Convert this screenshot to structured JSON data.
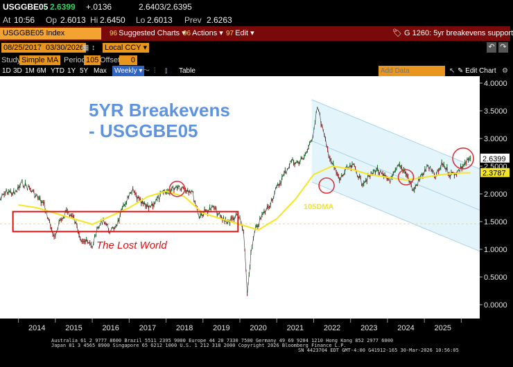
{
  "quote": {
    "ticker": "USGGBE05",
    "last": "2.6399",
    "arrow": "↑",
    "change": "+.0136",
    "bid_ask": "2.6403/2.6395",
    "at_label": "At",
    "time": "10:56",
    "op_label": "Op",
    "open": "2.6013",
    "hi_label": "Hi",
    "high": "2.6450",
    "lo_label": "Lo",
    "low": "2.6013",
    "prev_label": "Prev",
    "prev": "2.6263"
  },
  "toolbar": {
    "index_name": "USGGBE05 Index",
    "suggested_num": "96",
    "suggested": "Suggested Charts",
    "actions_num": "96",
    "actions": "Actions",
    "edit_num": "97",
    "edit": "Edit",
    "chart_id": "G 1260: 5yr breakevens support"
  },
  "controls": {
    "start_date": "08/25/2017",
    "end_date": "03/30/2026",
    "currency": "Local CCY",
    "study_label": "Study",
    "study": "Simple MA",
    "period_label": "Period",
    "period": "105",
    "offset_label": "Offset",
    "offset": "0",
    "add_data_placeholder": "Add Data",
    "edit_chart": "Edit Chart",
    "range_buttons": [
      "1D",
      "3D",
      "1M",
      "6M",
      "YTD",
      "1Y",
      "5Y",
      "Max"
    ],
    "frequency": "Weekly",
    "table": "Table"
  },
  "chart_data": {
    "type": "line",
    "title": "5YR Breakevens",
    "subtitle": "- USGGBE05",
    "annotation_box_label": "The Lost World",
    "ma_label": "105DMA",
    "x_ticks": [
      "2014",
      "2015",
      "2016",
      "2017",
      "2018",
      "2019",
      "2020",
      "2021",
      "2022",
      "2023",
      "2024",
      "2025"
    ],
    "y_ticks": [
      "4.0000",
      "3.5000",
      "3.0000",
      "2.5000",
      "2.0000",
      "1.5000",
      "1.0000",
      "0.5000",
      "0.0000"
    ],
    "ylim": [
      -0.1,
      4.05
    ],
    "last_label": "2.6399",
    "ma_last_label": "2.3787",
    "dashed_level": 1.46,
    "series": [
      {
        "name": "USGGBE05",
        "color": "#ffffff",
        "x": [
          2013.5,
          2013.7,
          2013.9,
          2014.1,
          2014.3,
          2014.5,
          2014.7,
          2014.9,
          2015.0,
          2015.1,
          2015.3,
          2015.5,
          2015.7,
          2015.9,
          2016.0,
          2016.1,
          2016.3,
          2016.5,
          2016.7,
          2016.9,
          2017.1,
          2017.3,
          2017.5,
          2017.7,
          2017.9,
          2018.1,
          2018.3,
          2018.5,
          2018.7,
          2018.9,
          2019.1,
          2019.3,
          2019.5,
          2019.7,
          2019.9,
          2020.0,
          2020.1,
          2020.2,
          2020.25,
          2020.3,
          2020.4,
          2020.6,
          2020.8,
          2021.0,
          2021.2,
          2021.4,
          2021.6,
          2021.8,
          2021.95,
          2022.1,
          2022.2,
          2022.35,
          2022.5,
          2022.7,
          2022.9,
          2023.1,
          2023.3,
          2023.5,
          2023.7,
          2023.9,
          2024.1,
          2024.3,
          2024.5,
          2024.7,
          2024.9,
          2025.1,
          2025.3,
          2025.5,
          2025.7,
          2025.9,
          2026.1,
          2026.25
        ],
        "values": [
          1.9,
          2.05,
          2.0,
          2.2,
          2.1,
          1.95,
          1.8,
          1.35,
          1.2,
          1.45,
          1.7,
          1.55,
          1.2,
          1.1,
          1.05,
          1.3,
          1.55,
          1.3,
          1.5,
          1.85,
          2.05,
          1.85,
          1.75,
          1.85,
          2.0,
          2.05,
          2.15,
          2.1,
          2.05,
          1.6,
          1.7,
          1.75,
          1.55,
          1.5,
          1.6,
          1.55,
          1.3,
          0.2,
          0.55,
          0.9,
          1.3,
          1.6,
          1.8,
          2.1,
          2.35,
          2.6,
          2.55,
          2.75,
          2.95,
          3.6,
          3.3,
          2.85,
          2.55,
          2.25,
          2.45,
          2.5,
          2.2,
          2.3,
          2.45,
          2.3,
          2.25,
          2.5,
          2.4,
          2.05,
          2.3,
          2.5,
          2.3,
          2.55,
          2.35,
          2.4,
          2.55,
          2.64
        ]
      },
      {
        "name": "105DMA",
        "color": "#f5e621",
        "x": [
          2014.0,
          2014.5,
          2015.0,
          2015.5,
          2016.0,
          2016.5,
          2017.0,
          2017.5,
          2018.0,
          2018.5,
          2019.0,
          2019.5,
          2020.0,
          2020.5,
          2021.0,
          2021.5,
          2022.0,
          2022.5,
          2023.0,
          2023.5,
          2024.0,
          2024.5,
          2025.0,
          2025.5,
          2026.0,
          2026.25
        ],
        "values": [
          1.8,
          1.75,
          1.65,
          1.55,
          1.45,
          1.6,
          1.75,
          1.95,
          2.05,
          1.95,
          1.65,
          1.55,
          1.45,
          1.35,
          1.55,
          1.9,
          2.35,
          2.5,
          2.45,
          2.35,
          2.3,
          2.25,
          2.3,
          2.35,
          2.38,
          2.38
        ]
      }
    ]
  },
  "footer": {
    "line1": "Australia 61 2 9777 8600 Brazil 5511 2395 9000 Europe 44 20 7330 7500 Germany 49 69 9204 1210 Hong Kong 852 2977 6000",
    "line2": "Japan 81 3 4565 8900       Singapore 65 6212 1000    U.S. 1 212 318 2000            Copyright 2026 Bloomberg Finance L.P.",
    "line3": "SN 4423704 EDT  GMT-4:00 G41912-165 30-Mar-2026 10:56:05"
  }
}
